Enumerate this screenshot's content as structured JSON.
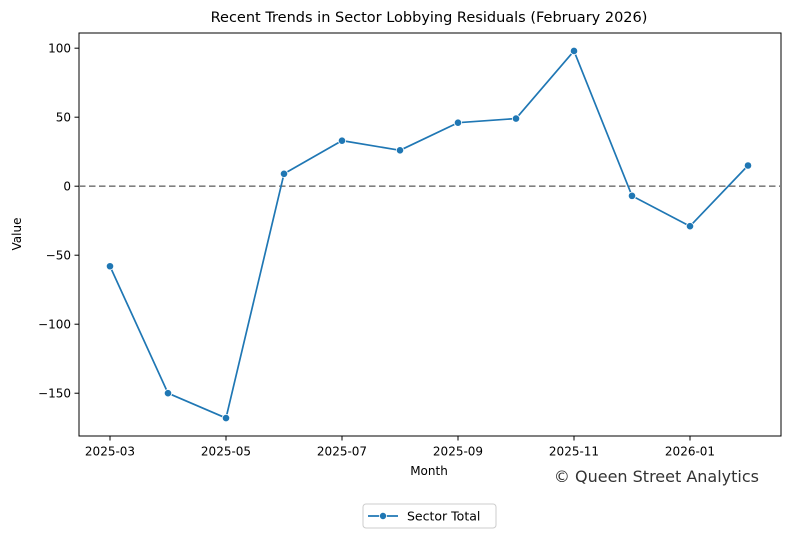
{
  "chart_data": {
    "type": "line",
    "title": "Recent Trends in Sector Lobbying Residuals (February 2026)",
    "xlabel": "Month",
    "ylabel": "Value",
    "x": [
      "2025-03",
      "2025-04",
      "2025-05",
      "2025-06",
      "2025-07",
      "2025-08",
      "2025-09",
      "2025-10",
      "2025-11",
      "2025-12",
      "2026-01",
      "2026-02"
    ],
    "x_tick_labels": [
      "2025-03",
      "2025-05",
      "2025-07",
      "2025-09",
      "2025-11",
      "2026-01"
    ],
    "y_ticks": [
      -150,
      -100,
      -50,
      0,
      50,
      100
    ],
    "y_tick_labels": [
      "−150",
      "−100",
      "−50",
      "0",
      "50",
      "100"
    ],
    "ylim": [
      -181,
      111
    ],
    "series": [
      {
        "name": "Sector Total",
        "color": "#1f77b4",
        "marker": "circle",
        "values": [
          -58,
          -150,
          -168,
          9,
          33,
          26,
          46,
          49,
          98,
          -7,
          -29,
          15
        ]
      }
    ],
    "reference_line": {
      "y": 0,
      "style": "dashed",
      "color": "#808080"
    },
    "legend": {
      "placement": "bottom-center-outside"
    },
    "grid": false,
    "watermark": "© Queen Street Analytics"
  }
}
